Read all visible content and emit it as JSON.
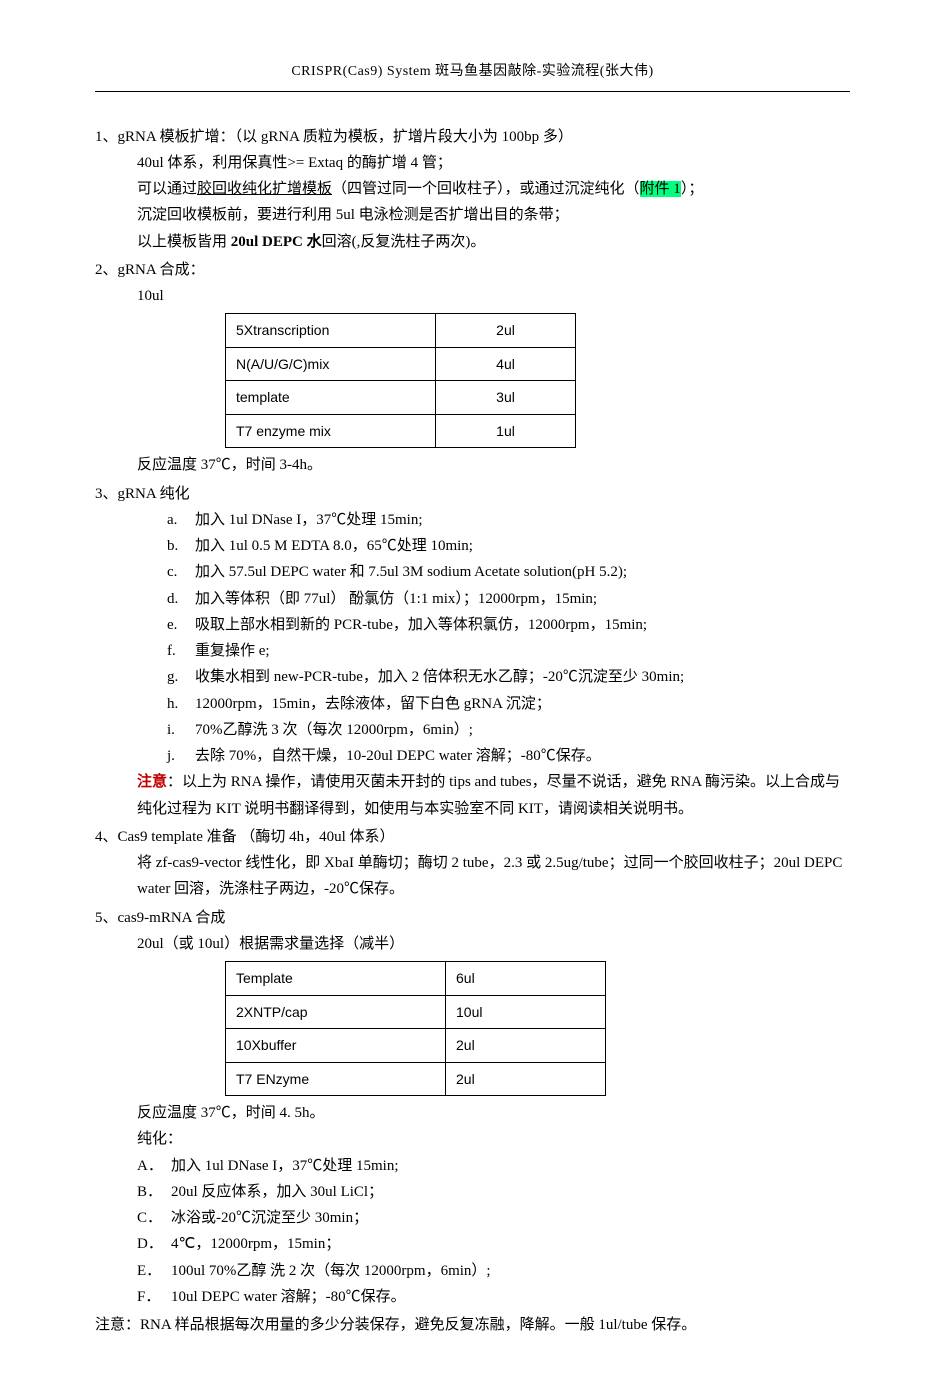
{
  "header": "CRISPR(Cas9)  System 斑马鱼基因敲除-实验流程(张大伟)",
  "s1": {
    "head": "1、gRNA 模板扩增：（以 gRNA 质粒为模板，扩增片段大小为 100bp 多）",
    "l1": "40ul 体系，利用保真性>= Extaq 的酶扩增 4 管；",
    "l2a": "可以通过",
    "l2u": "胶回收纯化扩增模板",
    "l2b": "（四管过同一个回收柱子），或通过沉淀纯化（",
    "l2hl": "附件  1",
    "l2c": "）；",
    "l3": "沉淀回收模板前，要进行利用 5ul 电泳检测是否扩增出目的条带；",
    "l4a": "以上模板皆用 ",
    "l4b": "20ul DEPC    水",
    "l4c": "回溶(,反复洗柱子两次)。"
  },
  "s2": {
    "head": "2、gRNA 合成：",
    "sub": "10ul",
    "table": [
      [
        "5Xtranscription",
        "2ul"
      ],
      [
        "N(A/U/G/C)mix",
        "4ul"
      ],
      [
        "template",
        "3ul"
      ],
      [
        "T7      enzyme      mix",
        "1ul"
      ]
    ],
    "after": "反应温度 37℃，时间 3-4h。"
  },
  "s3": {
    "head": "3、gRNA 纯化",
    "items": [
      "加入 1ul   DNase I，37℃处理 15min;",
      "加入 1ul    0.5 M EDTA 8.0，65℃处理 10min;",
      "加入 57.5ul DEPC water 和 7.5ul 3M sodium Acetate solution(pH 5.2);",
      "加入等体积（即 77ul） 酚氯仿（1:1 mix）；12000rpm，15min;",
      "吸取上部水相到新的 PCR-tube，加入等体积氯仿，12000rpm，15min;",
      "重复操作 e;",
      "收集水相到 new-PCR-tube，加入 2 倍体积无水乙醇；-20℃沉淀至少 30min;",
      "12000rpm，15min，去除液体，留下白色 gRNA 沉淀；",
      "70%乙醇洗 3 次（每次 12000rpm，6min）;",
      "去除 70%，自然干燥，10-20ul DEPC water 溶解；-80℃保存。"
    ],
    "markers": [
      "a.",
      "b.",
      "c.",
      "d.",
      "e.",
      "f.",
      "g.",
      "h.",
      "i.",
      "j."
    ],
    "note_label": "注意",
    "note_body": "：以上为 RNA 操作，请使用灭菌未开封的 tips and tubes，尽量不说话，避免 RNA 酶污染。以上合成与纯化过程为 KIT 说明书翻译得到，如使用与本实验室不同 KIT，请阅读相关说明书。"
  },
  "s4": {
    "head": "4、Cas9 template  准备  （酶切 4h，40ul 体系）",
    "l1": "将 zf-cas9-vector  线性化，即 XbaI 单酶切；酶切 2 tube，2.3 或 2.5ug/tube；过同一个胶回收柱子；20ul DEPC water  回溶，洗涤柱子两边，-20℃保存。"
  },
  "s5": {
    "head": "5、cas9-mRNA  合成",
    "sub": "20ul（或 10ul）根据需求量选择（减半）",
    "table": [
      [
        "Template",
        "6ul"
      ],
      [
        "2XNTP/cap",
        "10ul"
      ],
      [
        "10Xbuffer",
        "2ul"
      ],
      [
        "T7 ENzyme",
        "2ul"
      ]
    ],
    "after1": "反应温度 37℃，时间 4. 5h。",
    "after2": "纯化：",
    "items": [
      "加入 1ul   DNase I，37℃处理 15min;",
      "20ul 反应体系，加入 30ul LiCl；",
      "冰浴或-20℃沉淀至少 30min；",
      "4℃，12000rpm，15min；",
      "100ul 70%乙醇 洗 2 次（每次 12000rpm，6min）;",
      "10ul DEPC water 溶解；-80℃保存。"
    ],
    "markers": [
      "A．",
      "B．",
      "C．",
      "D．",
      "E．",
      "F．"
    ]
  },
  "lastnote": "注意：RNA 样品根据每次用量的多少分装保存，避免反复冻融，降解。一般 1ul/tube 保存。"
}
